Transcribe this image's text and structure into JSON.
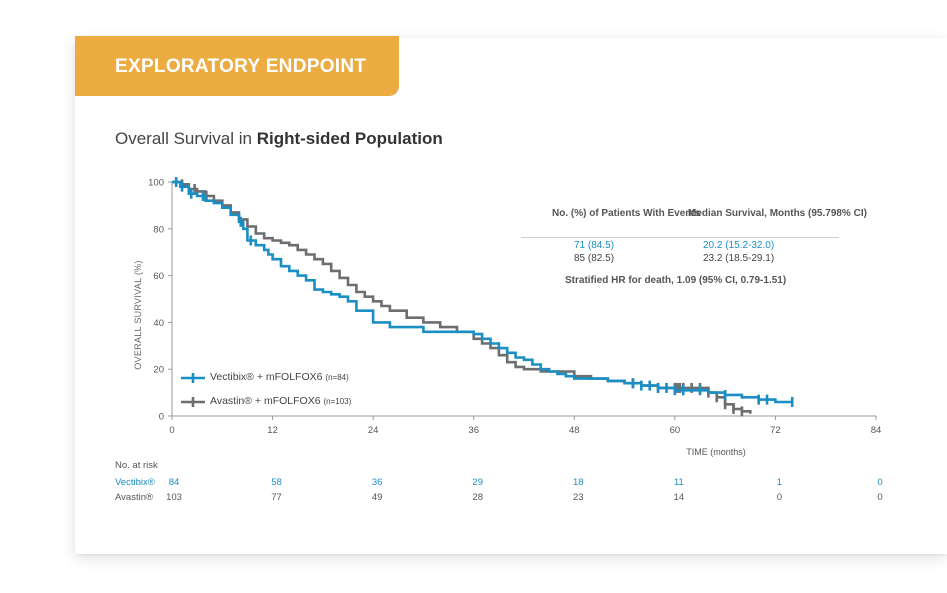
{
  "banner": {
    "label": "EXPLORATORY ENDPOINT"
  },
  "title": {
    "prefix": "Overall Survival in ",
    "bold": "Right-sided Population"
  },
  "colors": {
    "accent": "#ecac42",
    "vectibix": "#1b8ec4",
    "avastin": "#6d6e70"
  },
  "chart_data": {
    "type": "line",
    "xlabel": "TIME (months)",
    "ylabel": "OVERALL SURVIVAL (%)",
    "xlim": [
      0,
      84
    ],
    "ylim": [
      0,
      100
    ],
    "x_ticks": [
      0,
      12,
      24,
      36,
      48,
      60,
      72,
      84
    ],
    "y_ticks": [
      0,
      20,
      40,
      60,
      80,
      100
    ],
    "grid": false,
    "legend_position": "bottom-left",
    "series": [
      {
        "name": "Vectibix® + mFOLFOX6",
        "n_label": "(n=84)",
        "step": true,
        "x": [
          0,
          1,
          2,
          3,
          4,
          5,
          6,
          7,
          8,
          8.5,
          9,
          10,
          11,
          11.5,
          12,
          13,
          14,
          15,
          16,
          17,
          18,
          19,
          20,
          21,
          22,
          24,
          26,
          28,
          30,
          32,
          36,
          37,
          38,
          39,
          40,
          41,
          42,
          43,
          44,
          45,
          46,
          47,
          48,
          50,
          52,
          54,
          56,
          58,
          60,
          62,
          64,
          66,
          68,
          70,
          72,
          74
        ],
        "y": [
          100,
          98,
          95,
          94,
          92,
          91,
          89,
          86,
          83,
          80,
          75,
          73,
          71,
          69,
          67,
          64,
          62,
          60,
          58,
          54,
          53,
          52,
          51,
          49,
          45,
          40,
          38,
          38,
          36,
          36,
          35,
          33,
          31,
          29,
          27,
          25,
          24,
          22,
          20,
          19,
          18,
          17,
          16,
          16,
          15,
          14,
          13,
          12,
          11,
          11,
          10,
          9,
          8,
          7,
          6,
          6
        ],
        "censor_x": [
          0.5,
          1.2,
          2.3,
          3.7,
          8.2,
          9.4,
          55,
          56,
          57,
          58,
          59,
          60,
          61,
          63,
          66,
          70,
          71,
          74
        ]
      },
      {
        "name": "Avastin® + mFOLFOX6",
        "n_label": "(n=103)",
        "step": true,
        "x": [
          0,
          1,
          2,
          3,
          4,
          5,
          6,
          7,
          8,
          9,
          10,
          11,
          12,
          13,
          14,
          15,
          16,
          17,
          18,
          19,
          20,
          21,
          22,
          23,
          24,
          25,
          26,
          28,
          30,
          32,
          34,
          36,
          37,
          38,
          39,
          40,
          41,
          42,
          44,
          46,
          48,
          50,
          52,
          54,
          56,
          58,
          60,
          62,
          64,
          65,
          66,
          67,
          68,
          69
        ],
        "y": [
          100,
          99,
          97,
          96,
          94,
          92,
          90,
          87,
          84,
          81,
          78,
          76,
          75,
          74,
          73,
          71,
          69,
          67,
          65,
          62,
          59,
          56,
          53,
          51,
          49,
          47,
          45,
          42,
          40,
          38,
          36,
          33,
          31,
          29,
          26,
          23,
          21,
          20,
          19,
          19,
          17,
          16,
          15,
          14,
          13,
          12,
          12,
          12,
          10,
          8,
          5,
          3,
          2,
          1
        ],
        "censor_x": [
          1.2,
          2.7,
          4.1,
          55,
          58,
          60,
          60.3,
          60.6,
          61,
          62,
          63,
          64,
          65,
          66,
          67,
          68
        ]
      }
    ],
    "stats_table": {
      "col1_header": "No. (%) of Patients With Events",
      "col2_header": "Median Survival, Months (95.798% CI)",
      "rows": [
        {
          "events": "71 (84.5)",
          "median": "20.2 (15.2-32.0)"
        },
        {
          "events": "85 (82.5)",
          "median": "23.2 (18.5-29.1)"
        }
      ],
      "hr_text": "Stratified HR for death, 1.09 (95% CI, 0.79-1.51)"
    },
    "at_risk": {
      "title": "No. at risk",
      "rows": [
        {
          "label": "Vectibix®",
          "values": [
            "84",
            "58",
            "36",
            "29",
            "18",
            "11",
            "1",
            "0"
          ]
        },
        {
          "label": "Avastin®",
          "values": [
            "103",
            "77",
            "49",
            "28",
            "23",
            "14",
            "0",
            "0"
          ]
        }
      ]
    }
  }
}
